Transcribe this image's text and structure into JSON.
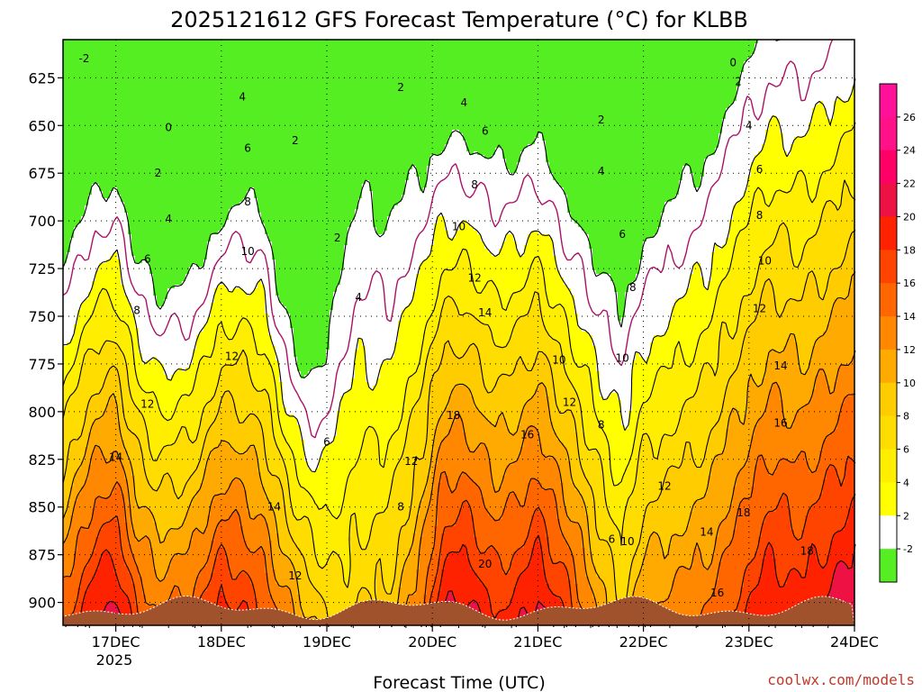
{
  "chart_data": {
    "type": "heatmap",
    "title": "2025121612 GFS Forecast Temperature (°C) for KLBB",
    "xlabel": "Forecast Time (UTC)",
    "ylabel": "",
    "credit": "coolwx.com/models",
    "x_ticks": [
      "17DEC",
      "18DEC",
      "19DEC",
      "20DEC",
      "21DEC",
      "22DEC",
      "23DEC",
      "24DEC"
    ],
    "x_year_label": "2025",
    "y_ticks": [
      625,
      650,
      675,
      700,
      725,
      750,
      775,
      800,
      825,
      850,
      875,
      900
    ],
    "ylim": [
      912,
      605
    ],
    "grid": true,
    "colorbar": {
      "tick_labels": [
        26,
        24,
        22,
        20,
        18,
        16,
        14,
        12,
        10,
        8,
        6,
        4,
        2,
        -2
      ],
      "bands": [
        {
          "min": -4,
          "max": -2,
          "color": "#55ee22"
        },
        {
          "min": -2,
          "max": 2,
          "color": "#ffffff"
        },
        {
          "min": 2,
          "max": 4,
          "color": "#ffff00"
        },
        {
          "min": 4,
          "max": 6,
          "color": "#ffee00"
        },
        {
          "min": 6,
          "max": 8,
          "color": "#ffdd00"
        },
        {
          "min": 8,
          "max": 10,
          "color": "#ffcc00"
        },
        {
          "min": 10,
          "max": 12,
          "color": "#ffaa00"
        },
        {
          "min": 12,
          "max": 14,
          "color": "#ff8800"
        },
        {
          "min": 14,
          "max": 16,
          "color": "#ff6600"
        },
        {
          "min": 16,
          "max": 18,
          "color": "#ff4400"
        },
        {
          "min": 18,
          "max": 20,
          "color": "#ff2200"
        },
        {
          "min": 20,
          "max": 22,
          "color": "#ee1144"
        },
        {
          "min": 22,
          "max": 24,
          "color": "#ff0066"
        },
        {
          "min": 24,
          "max": 26,
          "color": "#ff1188"
        },
        {
          "min": 26,
          "max": 28,
          "color": "#ff1199"
        }
      ]
    },
    "profiles": {
      "days": [
        16.5,
        16.8,
        17.0,
        17.2,
        17.4,
        17.7,
        18.0,
        18.2,
        18.4,
        18.6,
        18.75,
        18.9,
        19.1,
        19.3,
        19.6,
        19.9,
        20.1,
        20.3,
        20.6,
        20.8,
        21.0,
        21.3,
        21.6,
        21.8,
        22.0,
        22.3,
        22.6,
        22.9,
        23.2,
        23.5,
        23.8,
        24.0
      ],
      "t_surface": [
        15,
        20,
        21,
        16,
        14,
        15,
        19,
        18,
        16,
        13,
        11,
        9,
        7,
        8,
        9,
        14,
        20,
        21,
        18,
        19,
        21,
        17,
        11,
        8,
        12,
        13,
        14,
        17,
        20,
        19,
        21,
        22
      ],
      "lapse_rate_per_100hpa": [
        6.0,
        6.5,
        6.6,
        6.2,
        6.2,
        6.4,
        6.5,
        6.0,
        5.5,
        6.2,
        6.6,
        6.0,
        3.5,
        3.0,
        3.5,
        4.5,
        5.7,
        6.0,
        5.5,
        5.7,
        6.0,
        5.8,
        4.7,
        4.0,
        4.6,
        4.5,
        4.3,
        4.4,
        4.6,
        4.4,
        4.6,
        4.6
      ]
    },
    "contour_levels": [
      -2,
      0,
      2,
      4,
      6,
      8,
      10,
      12,
      14,
      16,
      18,
      20
    ],
    "contour_labels": [
      {
        "text": "-2",
        "day": 16.7,
        "p": 615
      },
      {
        "text": "0",
        "day": 17.5,
        "p": 651
      },
      {
        "text": "2",
        "day": 17.4,
        "p": 675
      },
      {
        "text": "4",
        "day": 17.5,
        "p": 699
      },
      {
        "text": "6",
        "day": 17.3,
        "p": 720
      },
      {
        "text": "8",
        "day": 17.2,
        "p": 747
      },
      {
        "text": "12",
        "day": 17.3,
        "p": 796
      },
      {
        "text": "14",
        "day": 17.0,
        "p": 824
      },
      {
        "text": "4",
        "day": 18.2,
        "p": 635
      },
      {
        "text": "6",
        "day": 18.25,
        "p": 662
      },
      {
        "text": "8",
        "day": 18.25,
        "p": 690
      },
      {
        "text": "10",
        "day": 18.25,
        "p": 716
      },
      {
        "text": "12",
        "day": 18.1,
        "p": 771
      },
      {
        "text": "14",
        "day": 18.5,
        "p": 850
      },
      {
        "text": "12",
        "day": 18.7,
        "p": 886
      },
      {
        "text": "2",
        "day": 18.7,
        "p": 658
      },
      {
        "text": "2",
        "day": 19.1,
        "p": 709
      },
      {
        "text": "4",
        "day": 19.3,
        "p": 740
      },
      {
        "text": "6",
        "day": 19.0,
        "p": 816
      },
      {
        "text": "2",
        "day": 19.7,
        "p": 630
      },
      {
        "text": "4",
        "day": 20.3,
        "p": 638
      },
      {
        "text": "6",
        "day": 20.5,
        "p": 653
      },
      {
        "text": "8",
        "day": 20.4,
        "p": 681
      },
      {
        "text": "10",
        "day": 20.25,
        "p": 703
      },
      {
        "text": "12",
        "day": 20.4,
        "p": 730
      },
      {
        "text": "14",
        "day": 20.5,
        "p": 748
      },
      {
        "text": "10",
        "day": 21.2,
        "p": 773
      },
      {
        "text": "12",
        "day": 21.3,
        "p": 795
      },
      {
        "text": "18",
        "day": 20.2,
        "p": 802
      },
      {
        "text": "16",
        "day": 20.9,
        "p": 812
      },
      {
        "text": "12",
        "day": 19.8,
        "p": 826
      },
      {
        "text": "8",
        "day": 19.7,
        "p": 850
      },
      {
        "text": "20",
        "day": 20.5,
        "p": 880
      },
      {
        "text": "2",
        "day": 21.6,
        "p": 647
      },
      {
        "text": "4",
        "day": 21.6,
        "p": 674
      },
      {
        "text": "6",
        "day": 21.8,
        "p": 707
      },
      {
        "text": "8",
        "day": 21.9,
        "p": 735
      },
      {
        "text": "10",
        "day": 21.8,
        "p": 772
      },
      {
        "text": "8",
        "day": 21.6,
        "p": 807
      },
      {
        "text": "6",
        "day": 21.7,
        "p": 867
      },
      {
        "text": "10",
        "day": 21.85,
        "p": 868
      },
      {
        "text": "12",
        "day": 22.2,
        "p": 839
      },
      {
        "text": "14",
        "day": 22.6,
        "p": 863
      },
      {
        "text": "16",
        "day": 22.7,
        "p": 895
      },
      {
        "text": "18",
        "day": 22.95,
        "p": 853
      },
      {
        "text": "18",
        "day": 23.55,
        "p": 873
      },
      {
        "text": "0",
        "day": 22.85,
        "p": 617
      },
      {
        "text": "2",
        "day": 22.9,
        "p": 627
      },
      {
        "text": "4",
        "day": 23.0,
        "p": 650
      },
      {
        "text": "6",
        "day": 23.1,
        "p": 673
      },
      {
        "text": "8",
        "day": 23.1,
        "p": 697
      },
      {
        "text": "10",
        "day": 23.15,
        "p": 721
      },
      {
        "text": "12",
        "day": 23.1,
        "p": 746
      },
      {
        "text": "14",
        "day": 23.3,
        "p": 776
      },
      {
        "text": "16",
        "day": 23.3,
        "p": 806
      }
    ]
  }
}
